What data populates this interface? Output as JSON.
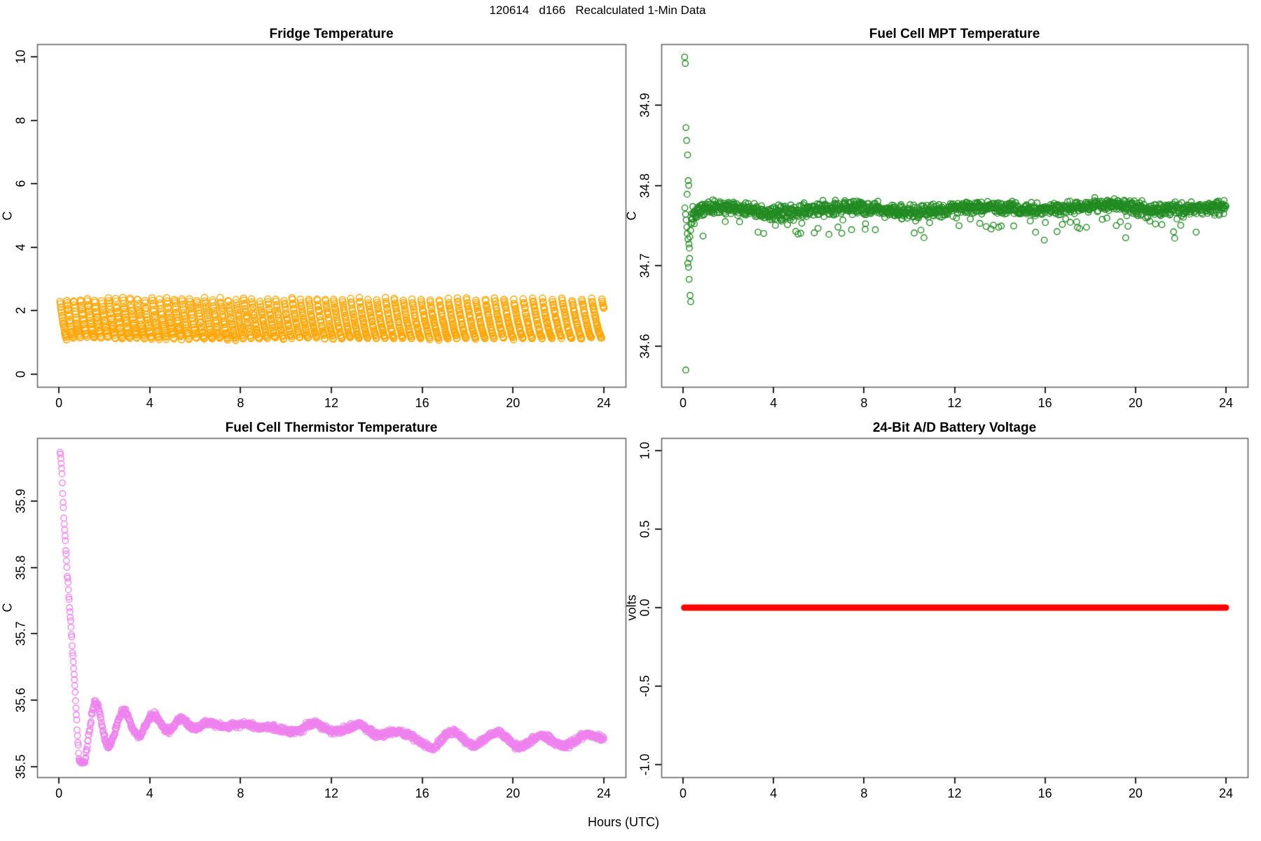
{
  "page": {
    "main_title": "120614   d166   Recalculated 1-Min Data",
    "x_axis_label": "Hours (UTC)"
  },
  "chart_data": [
    {
      "type": "scatter",
      "panel": "top-left",
      "title": "Fridge Temperature",
      "ylabel": "C",
      "xlabel": "",
      "xlim": [
        0,
        24
      ],
      "ylim": [
        0,
        10
      ],
      "xticks": [
        0,
        4,
        8,
        12,
        16,
        20,
        24
      ],
      "xtick_labels": [
        "0",
        "4",
        "8",
        "12",
        "16",
        "20",
        "24"
      ],
      "yticks": [
        0,
        2,
        4,
        6,
        8,
        10
      ],
      "ytick_labels": [
        "0",
        "2",
        "4",
        "6",
        "8",
        "10"
      ],
      "grid": false,
      "color": "#FFA500",
      "marker": "open-circle",
      "series": [
        {
          "name": "fridge_temp_C",
          "kind": "defrost-cycle-sawtooth",
          "x_start": 0.05,
          "x_end": 24,
          "points_per_hour": 60,
          "cycle_period_hours_start": 0.3,
          "cycle_period_hours_end": 0.444,
          "cycle_top_C": 2.4,
          "cycle_bottom_C": 1.12,
          "decay_exponent": 1.35,
          "noise_sd": 0.02
        }
      ]
    },
    {
      "type": "scatter",
      "panel": "top-right",
      "title": "Fuel Cell MPT Temperature",
      "ylabel": "C",
      "xlabel": "",
      "xlim": [
        0,
        24
      ],
      "ylim": [
        34.549,
        34.976
      ],
      "xticks": [
        0,
        4,
        8,
        12,
        16,
        20,
        24
      ],
      "xtick_labels": [
        "0",
        "4",
        "8",
        "12",
        "16",
        "20",
        "24"
      ],
      "yticks": [
        34.6,
        34.7,
        34.8,
        34.9
      ],
      "ytick_labels": [
        "34.6",
        "34.7",
        "34.8",
        "34.9"
      ],
      "grid": false,
      "color": "#228B22",
      "marker": "open-circle",
      "transient_points": [
        [
          0.07,
          34.96
        ],
        [
          0.1,
          34.952
        ],
        [
          0.13,
          34.872
        ],
        [
          0.16,
          34.856
        ],
        [
          0.2,
          34.838
        ],
        [
          0.23,
          34.806
        ],
        [
          0.25,
          34.8
        ],
        [
          0.08,
          34.772
        ],
        [
          0.11,
          34.764
        ],
        [
          0.14,
          34.757
        ],
        [
          0.17,
          34.748
        ],
        [
          0.19,
          34.74
        ],
        [
          0.22,
          34.733
        ],
        [
          0.26,
          34.727
        ],
        [
          0.28,
          34.722
        ],
        [
          0.3,
          34.736
        ],
        [
          0.33,
          34.744
        ],
        [
          0.35,
          34.752
        ],
        [
          0.21,
          34.703
        ],
        [
          0.24,
          34.698
        ],
        [
          0.27,
          34.683
        ],
        [
          0.31,
          34.663
        ],
        [
          0.34,
          34.655
        ],
        [
          0.12,
          34.57
        ],
        [
          0.37,
          34.758
        ],
        [
          0.39,
          34.765
        ],
        [
          0.29,
          34.709
        ],
        [
          0.18,
          34.789
        ]
      ],
      "series": [
        {
          "name": "mpt_temp_C",
          "kind": "noisy-band",
          "x_start": 0.4,
          "x_end": 24,
          "points_per_hour": 60,
          "base_start_C": 34.7625,
          "base_end_C": 34.771,
          "warmup_hours": 1.8,
          "sag_center_hour": 3.8,
          "sag_depth_C": 0.004,
          "wobble_amp_C": 0.0025,
          "noise_sd": 0.0042,
          "low_outlier_prob": 0.055,
          "low_outlier_max_drop_C": 0.028
        }
      ]
    },
    {
      "type": "scatter",
      "panel": "bottom-left",
      "title": "Fuel Cell Thermistor Temperature",
      "ylabel": "C",
      "xlabel": "",
      "xlim": [
        0,
        24
      ],
      "ylim": [
        35.484,
        35.995
      ],
      "xticks": [
        0,
        4,
        8,
        12,
        16,
        20,
        24
      ],
      "xtick_labels": [
        "0",
        "4",
        "8",
        "12",
        "16",
        "20",
        "24"
      ],
      "yticks": [
        35.5,
        35.6,
        35.7,
        35.8,
        35.9
      ],
      "ytick_labels": [
        "35.5",
        "35.6",
        "35.7",
        "35.8",
        "35.9"
      ],
      "grid": false,
      "color": "#EE82EE",
      "marker": "open-circle",
      "series": [
        {
          "name": "thermistor_temp_C",
          "kind": "interpolated-anchors",
          "points_per_hour": 60,
          "noise_sd": 0.0022,
          "anchors": [
            [
              0.05,
              35.975
            ],
            [
              0.08,
              35.965
            ],
            [
              0.12,
              35.95
            ],
            [
              0.15,
              35.928
            ],
            [
              0.18,
              35.9
            ],
            [
              0.22,
              35.875
            ],
            [
              0.25,
              35.855
            ],
            [
              0.28,
              35.838
            ],
            [
              0.32,
              35.82
            ],
            [
              0.35,
              35.8
            ],
            [
              0.38,
              35.785
            ],
            [
              0.42,
              35.765
            ],
            [
              0.45,
              35.75
            ],
            [
              0.48,
              35.735
            ],
            [
              0.52,
              35.718
            ],
            [
              0.55,
              35.7
            ],
            [
              0.58,
              35.685
            ],
            [
              0.62,
              35.665
            ],
            [
              0.65,
              35.648
            ],
            [
              0.7,
              35.62
            ],
            [
              0.75,
              35.59
            ],
            [
              0.8,
              35.558
            ],
            [
              0.85,
              35.528
            ],
            [
              0.9,
              35.508
            ],
            [
              1.0,
              35.504
            ],
            [
              1.15,
              35.506
            ],
            [
              1.3,
              35.545
            ],
            [
              1.45,
              35.58
            ],
            [
              1.6,
              35.598
            ],
            [
              1.75,
              35.59
            ],
            [
              1.9,
              35.562
            ],
            [
              2.05,
              35.538
            ],
            [
              2.2,
              35.528
            ],
            [
              2.35,
              35.54
            ],
            [
              2.55,
              35.562
            ],
            [
              2.75,
              35.582
            ],
            [
              2.9,
              35.585
            ],
            [
              3.05,
              35.575
            ],
            [
              3.25,
              35.556
            ],
            [
              3.45,
              35.546
            ],
            [
              3.65,
              35.55
            ],
            [
              3.85,
              35.565
            ],
            [
              4.05,
              35.576
            ],
            [
              4.25,
              35.577
            ],
            [
              4.45,
              35.566
            ],
            [
              4.65,
              35.556
            ],
            [
              4.85,
              35.553
            ],
            [
              5.05,
              35.56
            ],
            [
              5.25,
              35.57
            ],
            [
              5.45,
              35.572
            ],
            [
              5.65,
              35.565
            ],
            [
              5.85,
              35.558
            ],
            [
              6.1,
              35.558
            ],
            [
              6.4,
              35.565
            ],
            [
              6.7,
              35.566
            ],
            [
              7.0,
              35.562
            ],
            [
              7.4,
              35.56
            ],
            [
              7.8,
              35.563
            ],
            [
              8.2,
              35.565
            ],
            [
              8.6,
              35.561
            ],
            [
              9.0,
              35.558
            ],
            [
              9.4,
              35.56
            ],
            [
              9.8,
              35.555
            ],
            [
              10.2,
              35.552
            ],
            [
              10.6,
              35.555
            ],
            [
              11.0,
              35.563
            ],
            [
              11.3,
              35.566
            ],
            [
              11.7,
              35.558
            ],
            [
              12.0,
              35.552
            ],
            [
              12.4,
              35.554
            ],
            [
              12.8,
              35.559
            ],
            [
              13.2,
              35.564
            ],
            [
              13.5,
              35.558
            ],
            [
              13.9,
              35.549
            ],
            [
              14.3,
              35.548
            ],
            [
              14.7,
              35.552
            ],
            [
              15.1,
              35.551
            ],
            [
              15.5,
              35.546
            ],
            [
              15.9,
              35.538
            ],
            [
              16.2,
              35.53
            ],
            [
              16.5,
              35.528
            ],
            [
              16.8,
              35.538
            ],
            [
              17.1,
              35.55
            ],
            [
              17.4,
              35.553
            ],
            [
              17.7,
              35.546
            ],
            [
              18.0,
              35.537
            ],
            [
              18.3,
              35.531
            ],
            [
              18.6,
              35.537
            ],
            [
              19.0,
              35.548
            ],
            [
              19.3,
              35.553
            ],
            [
              19.6,
              35.546
            ],
            [
              20.0,
              35.534
            ],
            [
              20.3,
              35.528
            ],
            [
              20.6,
              35.534
            ],
            [
              21.0,
              35.544
            ],
            [
              21.3,
              35.548
            ],
            [
              21.7,
              35.54
            ],
            [
              22.0,
              35.533
            ],
            [
              22.3,
              35.531
            ],
            [
              22.7,
              35.538
            ],
            [
              23.0,
              35.546
            ],
            [
              23.3,
              35.549
            ],
            [
              23.7,
              35.545
            ],
            [
              24.0,
              35.544
            ]
          ]
        }
      ]
    },
    {
      "type": "scatter",
      "panel": "bottom-right",
      "title": "24-Bit A/D Battery Voltage",
      "ylabel": "volts",
      "xlabel": "",
      "xlim": [
        0,
        24
      ],
      "ylim": [
        -1.0,
        1.0
      ],
      "xticks": [
        0,
        4,
        8,
        12,
        16,
        20,
        24
      ],
      "xtick_labels": [
        "0",
        "4",
        "8",
        "12",
        "16",
        "20",
        "24"
      ],
      "yticks": [
        -1.0,
        -0.5,
        0.0,
        0.5,
        1.0
      ],
      "ytick_labels": [
        "-1.0",
        "-0.5",
        "0.0",
        "0.5",
        "1.0"
      ],
      "grid": false,
      "color": "#FF0000",
      "marker": "filled-circle",
      "series": [
        {
          "name": "battery_volts",
          "kind": "constant",
          "value": 0.0,
          "x_start": 0.05,
          "x_end": 24,
          "points_per_hour": 60
        }
      ]
    }
  ]
}
